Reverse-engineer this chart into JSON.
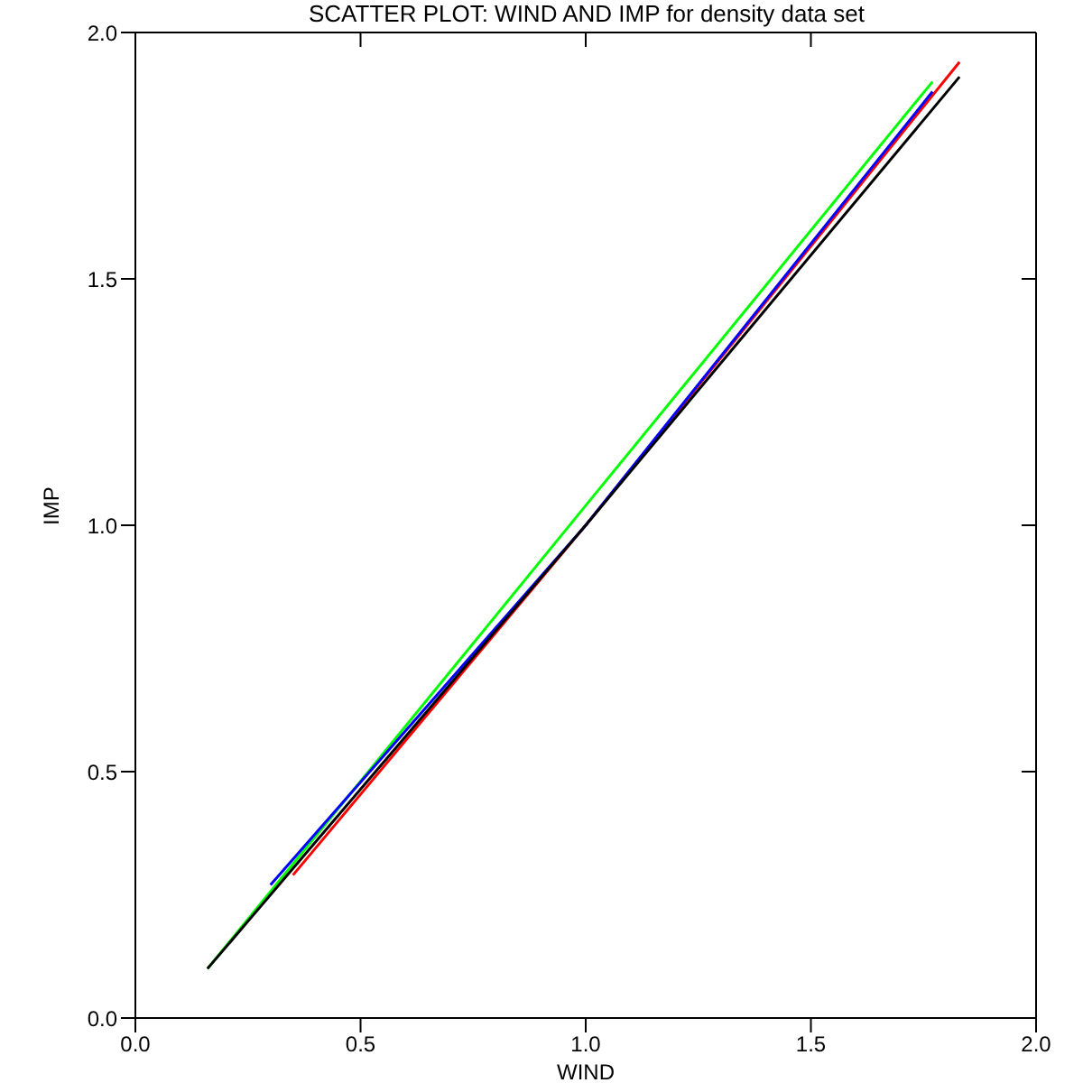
{
  "chart_data": {
    "type": "line",
    "title": "SCATTER PLOT: WIND AND IMP for density data set",
    "xlabel": "WIND",
    "ylabel": "IMP",
    "xlim": [
      0,
      2
    ],
    "ylim": [
      0,
      2
    ],
    "xticks": [
      {
        "value": 0,
        "label": "0.0"
      },
      {
        "value": 0.5,
        "label": "0.5"
      },
      {
        "value": 1,
        "label": "1.0"
      },
      {
        "value": 1.5,
        "label": "1.5"
      },
      {
        "value": 2,
        "label": "2.0"
      }
    ],
    "yticks": [
      {
        "value": 0,
        "label": "0.0"
      },
      {
        "value": 0.5,
        "label": "0.5"
      },
      {
        "value": 1,
        "label": "1.0"
      },
      {
        "value": 1.5,
        "label": "1.5"
      },
      {
        "value": 2,
        "label": "2.0"
      }
    ],
    "marker": "none",
    "line_style": "solid",
    "series": [
      {
        "color": "#00ff00",
        "x": [
          0.16,
          1.0,
          1.77
        ],
        "values": [
          0.1,
          1.04,
          1.9
        ]
      },
      {
        "color": "#ff0000",
        "x": [
          0.35,
          1.0,
          1.83
        ],
        "values": [
          0.29,
          1.0,
          1.94
        ]
      },
      {
        "color": "#0000ff",
        "x": [
          0.3,
          1.0,
          1.77
        ],
        "values": [
          0.27,
          1.0,
          1.88
        ]
      },
      {
        "color": "#000000",
        "x": [
          0.16,
          1.0,
          1.83
        ],
        "values": [
          0.1,
          1.0,
          1.91
        ]
      }
    ]
  }
}
